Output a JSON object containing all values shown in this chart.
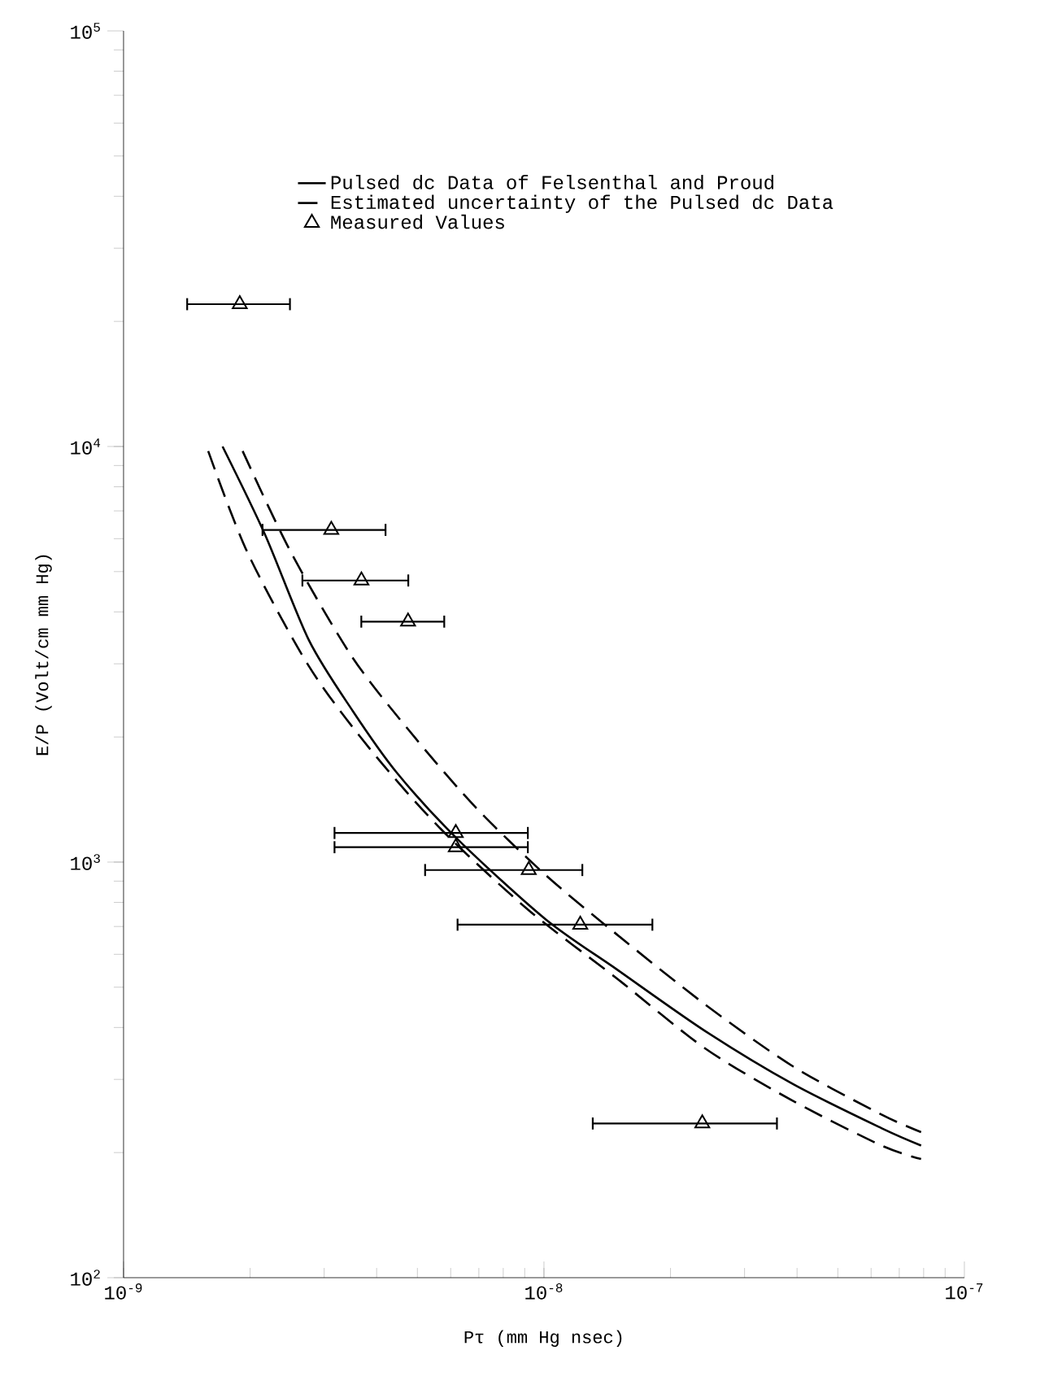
{
  "chart_data": {
    "type": "line",
    "xlabel": "Pτ (mm Hg nsec)",
    "ylabel": "E/P (Volt/cm mm Hg)",
    "log": "xy",
    "legend": "top",
    "xlim": [
      1e-09,
      1e-07
    ],
    "ylim": [
      100,
      100000
    ],
    "xticks": [
      {
        "value": 1e-09,
        "label": "10$^{-9}$"
      },
      {
        "value": 1e-08,
        "label": "10$^{-8}$"
      },
      {
        "value": 1e-07,
        "label": "10$^{-7}$"
      }
    ],
    "yticks": [
      {
        "value": 100,
        "label": "10$^{2}$"
      },
      {
        "value": 1000,
        "label": "10$^{3}$"
      },
      {
        "value": 10000,
        "label": "10$^{4}$"
      },
      {
        "value": 100000,
        "label": "10$^{5}$"
      }
    ],
    "series": [
      {
        "name": "Pulsed dc Data of Felsenthal and Proud",
        "type": "line",
        "line_style": "solid",
        "color": "#000000",
        "x": [
          1.72e-09,
          2.17e-09,
          2.76e-09,
          3.51e-09,
          4.47e-09,
          6.26e-09,
          1.01e-08,
          1.49e-08,
          2.42e-08,
          3.92e-08,
          6.35e-08,
          7.89e-08
        ],
        "values": [
          10000,
          6140,
          3420,
          2310,
          1640,
          1130,
          728,
          552,
          392,
          292,
          229,
          208
        ]
      },
      {
        "name": "Estimated uncertainty of the Pulsed dc Data",
        "type": "line",
        "line_style": "dashed",
        "color": "#000000",
        "x": [
          1.92e-09,
          2.5e-09,
          3.51e-09,
          4.92e-09,
          6.9e-09,
          1.01e-08,
          1.49e-08,
          2.42e-08,
          3.92e-08,
          6.35e-08,
          7.89e-08
        ],
        "values": [
          9750,
          5570,
          3100,
          2000,
          1350,
          930,
          670,
          454,
          322,
          247,
          224
        ]
      },
      {
        "type": "line",
        "line_style": "dashed",
        "color": "#000000",
        "x": [
          1.59e-09,
          1.97e-09,
          2.76e-09,
          3.86e-09,
          5.69e-09,
          9.2e-09,
          1.49e-08,
          2.42e-08,
          3.92e-08,
          6.35e-08,
          7.89e-08
        ],
        "values": [
          9750,
          5570,
          2960,
          1870,
          1200,
          766,
          525,
          356,
          266,
          208,
          193
        ]
      },
      {
        "name": "Measured Values",
        "type": "scatter",
        "marker": "triangle",
        "color": "#000000",
        "x": [
          1.89e-09,
          3.12e-09,
          3.68e-09,
          4.75e-09,
          6.17e-09,
          6.17e-09,
          9.2e-09,
          1.22e-08,
          2.38e-08
        ],
        "values": [
          22000,
          6300,
          4760,
          3790,
          1175,
          1086,
          957,
          707,
          235
        ],
        "xerrors": [
          [
            1.41e-09,
            2.5e-09
          ],
          [
            2.13e-09,
            4.22e-09
          ],
          [
            2.65e-09,
            4.78e-09
          ],
          [
            3.66e-09,
            5.82e-09
          ],
          [
            3.16e-09,
            9.2e-09
          ],
          [
            3.16e-09,
            9.2e-09
          ],
          [
            5.19e-09,
            1.24e-08
          ],
          [
            6.2e-09,
            1.82e-08
          ],
          [
            1.3e-08,
            3.6e-08
          ]
        ]
      }
    ]
  }
}
